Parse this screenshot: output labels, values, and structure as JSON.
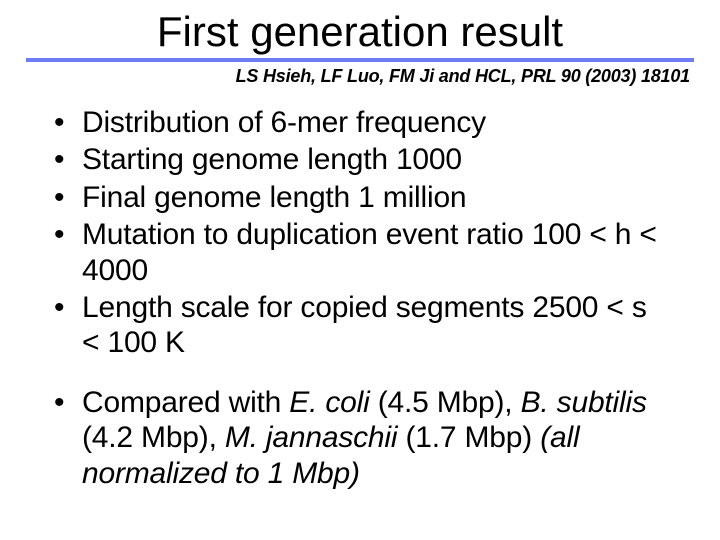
{
  "title": "First generation result",
  "citation": "LS Hsieh, LF Luo, FM Ji and HCL, PRL 90 (2003) 18101",
  "colors": {
    "underline": "#6e7cf4",
    "background": "#ffffff",
    "text": "#000000"
  },
  "typography": {
    "title_fontsize": 42,
    "citation_fontsize": 18,
    "bullet_fontsize": 30,
    "body_font": "Century Gothic",
    "citation_font": "Arial"
  },
  "bullets_group1": [
    "Distribution of 6-mer frequency",
    "Starting genome length 1000",
    "Final genome length 1 million",
    "Mutation to duplication event ratio 100 < h < 4000",
    "Length scale for copied segments 2500 < s < 100 K"
  ],
  "bullets_group2_parts": {
    "prefix": "Compared with ",
    "sp1": "E. coli",
    "v1": " (4.5 Mbp), ",
    "sp2": "B. subtilis",
    "v2": " (4.2 Mbp), ",
    "sp3": "M. jannaschii",
    "v3": " (1.7 Mbp) ",
    "suffix": "(all normalized to 1 Mbp)"
  }
}
